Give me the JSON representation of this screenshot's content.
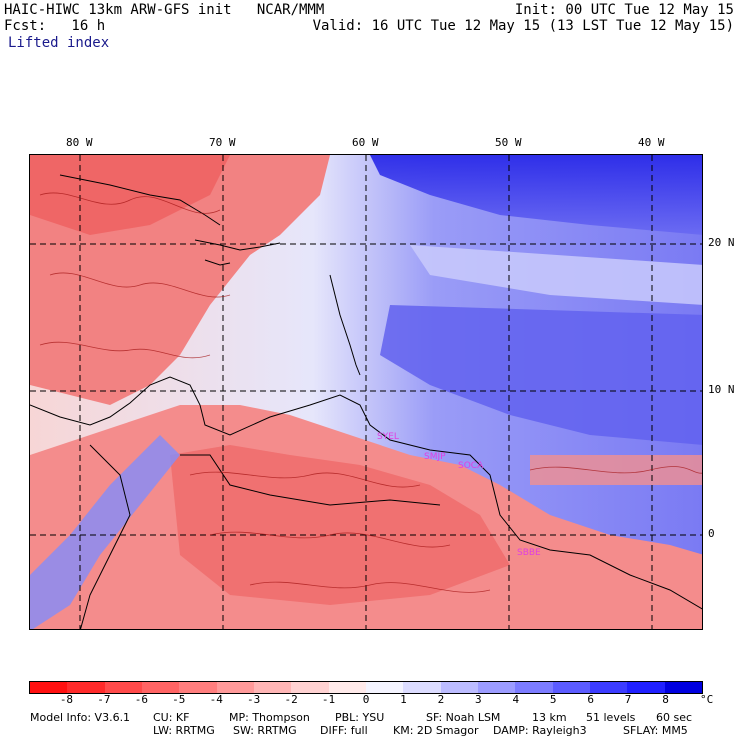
{
  "header": {
    "title": "HAIC-HIWC 13km ARW-GFS init   NCAR/MMM",
    "fcst": "Fcst:   16 h",
    "field": "Lifted index",
    "init": "Init: 00 UTC Tue 12 May 15",
    "valid": "Valid: 16 UTC Tue 12 May 15 (13 LST Tue 12 May 15)"
  },
  "map": {
    "lon_labels": [
      "80 W",
      "70 W",
      "60 W",
      "50 W",
      "40 W"
    ],
    "lat_labels": [
      "20 N",
      "10 N",
      "0"
    ],
    "stations": [
      "SYEL",
      "SMJP",
      "SOCA",
      "SBBE"
    ]
  },
  "colorbar": {
    "labels": [
      "-8",
      "-7",
      "-6",
      "-5",
      "-4",
      "-3",
      "-2",
      "-1",
      "0",
      "1",
      "2",
      "3",
      "4",
      "5",
      "6",
      "7",
      "8"
    ],
    "unit": "°C",
    "colors": [
      "#ff1010",
      "#ff2a2a",
      "#ff4a4a",
      "#ff6464",
      "#ff7e7e",
      "#ff9a9a",
      "#ffb6b6",
      "#ffd2d2",
      "#ffeaea",
      "#f4f4ff",
      "#dcdcff",
      "#bcbcff",
      "#9c9cff",
      "#7c7cff",
      "#5c5cff",
      "#3c3cff",
      "#2020ff",
      "#0000e0"
    ]
  },
  "model_info": {
    "row1": [
      "Model Info: V3.6.1",
      "CU: KF",
      "MP: Thompson",
      "PBL: YSU",
      "SF: Noah LSM",
      "13 km",
      "51 levels",
      "60 sec"
    ],
    "row2": [
      "LW: RRTMG",
      "SW: RRTMG",
      "DIFF: full",
      "KM: 2D Smagor",
      "DAMP: Rayleigh3",
      "SFLAY: MM5"
    ]
  }
}
